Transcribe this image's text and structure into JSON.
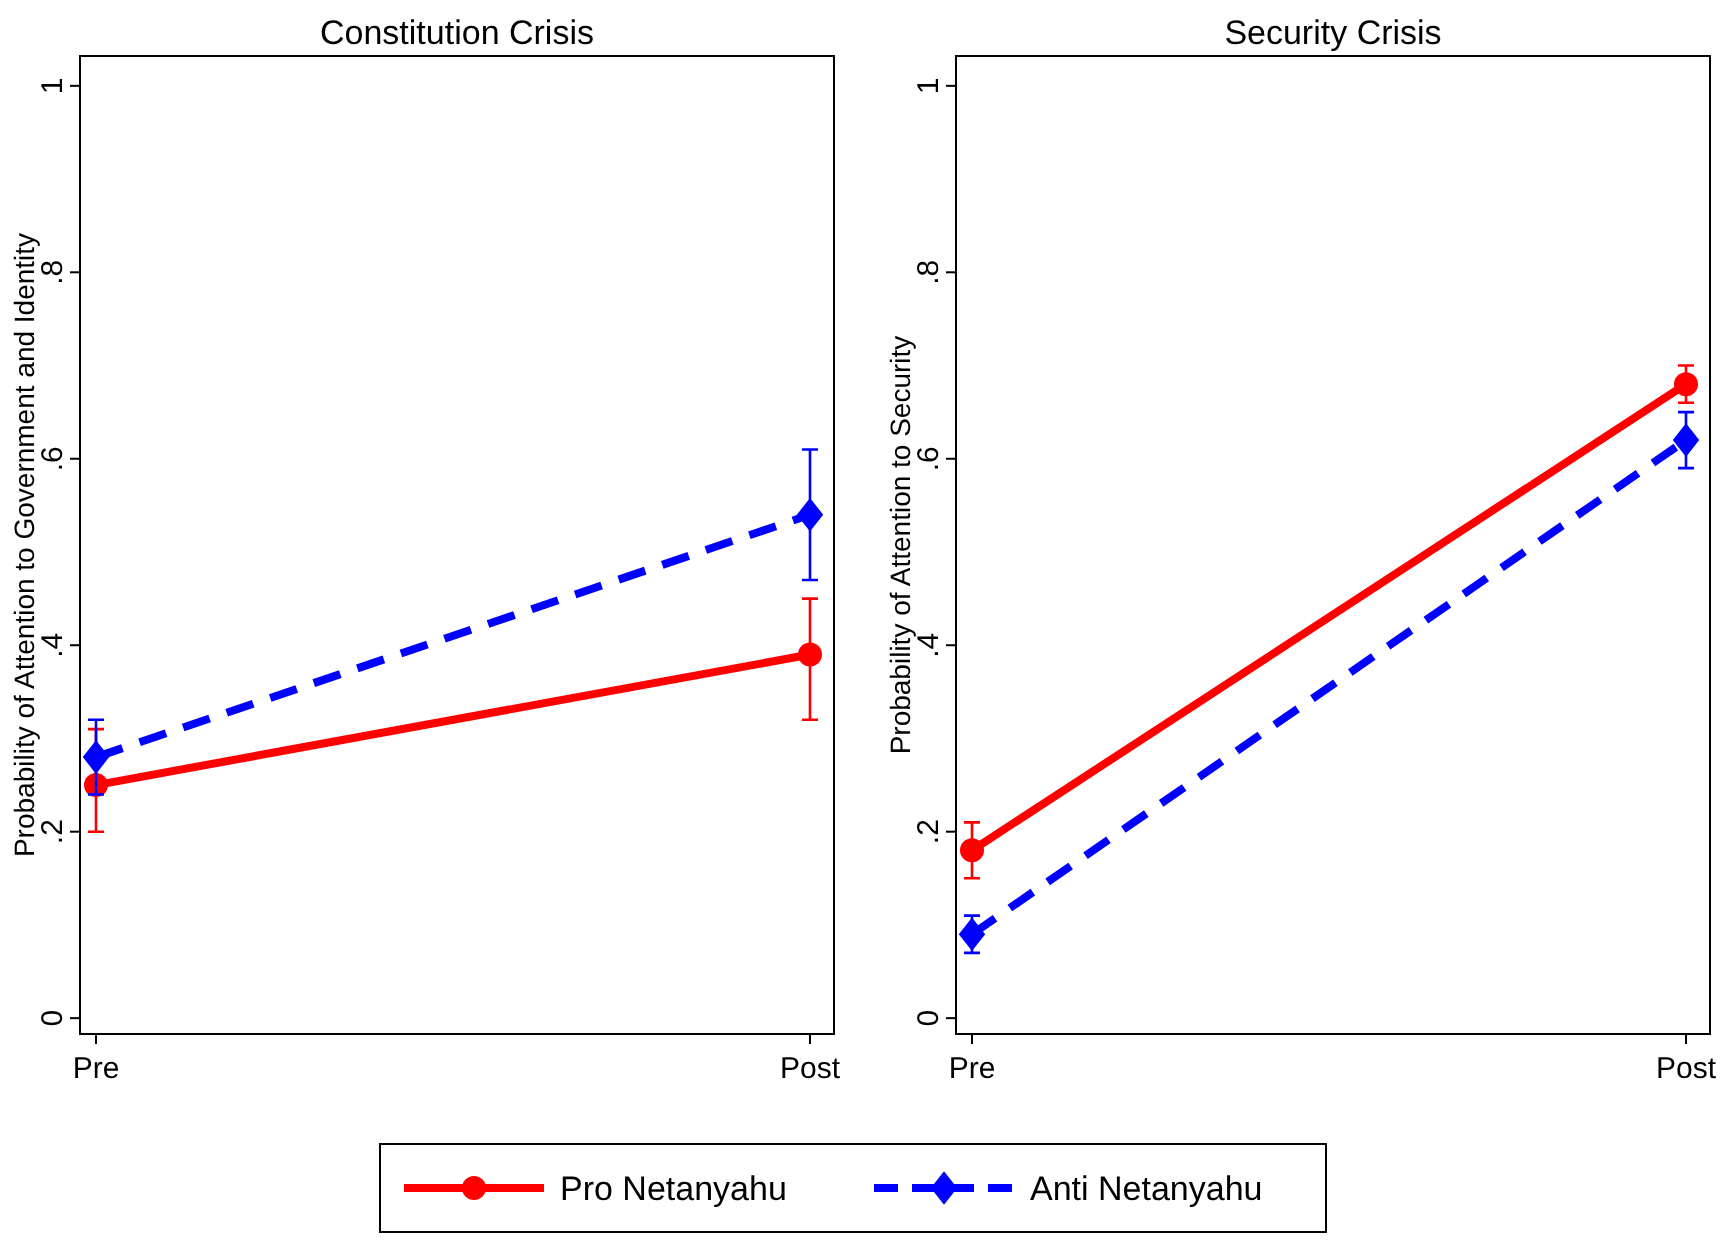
{
  "chart_data": [
    {
      "type": "line",
      "title": "Constitution Crisis",
      "ylabel": "Probability of Attention to Government and Identity",
      "categories": [
        "Pre",
        "Post"
      ],
      "ylim": [
        -0.017,
        1.032
      ],
      "yticks": [
        {
          "value": 0,
          "label": "0"
        },
        {
          "value": 0.2,
          "label": ".2"
        },
        {
          "value": 0.4,
          "label": ".4"
        },
        {
          "value": 0.6,
          "label": ".6"
        },
        {
          "value": 0.8,
          "label": ".8"
        },
        {
          "value": 1,
          "label": "1"
        }
      ],
      "grid": false,
      "legend": "bottom",
      "series": [
        {
          "name": "Pro Netanyahu",
          "color": "#ff0000",
          "values": [
            0.25,
            0.39
          ],
          "errors": [
            [
              0.2,
              0.31
            ],
            [
              0.32,
              0.45
            ]
          ],
          "marker": "circle",
          "line_style": "solid"
        },
        {
          "name": "Anti Netanyahu",
          "color": "#0000ff",
          "values": [
            0.28,
            0.54
          ],
          "errors": [
            [
              0.24,
              0.32
            ],
            [
              0.47,
              0.61
            ]
          ],
          "marker": "diamond",
          "line_style": "dashed"
        }
      ]
    },
    {
      "type": "line",
      "title": "Security Crisis",
      "ylabel": "Probability of Attention to Security",
      "categories": [
        "Pre",
        "Post"
      ],
      "ylim": [
        -0.017,
        1.032
      ],
      "yticks": [
        {
          "value": 0,
          "label": "0"
        },
        {
          "value": 0.2,
          "label": ".2"
        },
        {
          "value": 0.4,
          "label": ".4"
        },
        {
          "value": 0.6,
          "label": ".6"
        },
        {
          "value": 0.8,
          "label": ".8"
        },
        {
          "value": 1,
          "label": "1"
        }
      ],
      "grid": false,
      "series": [
        {
          "color": "#ff0000",
          "values": [
            0.18,
            0.68
          ],
          "errors": [
            [
              0.15,
              0.21
            ],
            [
              0.66,
              0.7
            ]
          ],
          "marker": "circle",
          "line_style": "solid"
        },
        {
          "color": "#0000ff",
          "values": [
            0.09,
            0.62
          ],
          "errors": [
            [
              0.07,
              0.11
            ],
            [
              0.59,
              0.65
            ]
          ],
          "marker": "diamond",
          "line_style": "dashed"
        }
      ]
    }
  ]
}
